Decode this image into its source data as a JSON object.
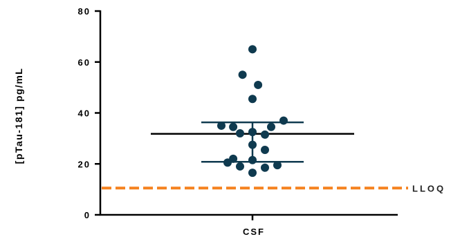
{
  "chart_data": {
    "type": "scatter",
    "title": "",
    "xlabel": "",
    "ylabel": "[pTau-181] pg/mL",
    "ylim": [
      0,
      80
    ],
    "yticks": [
      0,
      20,
      40,
      60,
      80
    ],
    "grid": false,
    "categories": [
      "CSF"
    ],
    "series": [
      {
        "category": "CSF",
        "points": [
          {
            "x_offset": 0.0,
            "y": 65
          },
          {
            "x_offset": -0.32,
            "y": 55
          },
          {
            "x_offset": 0.18,
            "y": 51
          },
          {
            "x_offset": 0.0,
            "y": 45.5
          },
          {
            "x_offset": 1.0,
            "y": 37
          },
          {
            "x_offset": -1.0,
            "y": 35
          },
          {
            "x_offset": -0.62,
            "y": 34.5
          },
          {
            "x_offset": 0.6,
            "y": 34.5
          },
          {
            "x_offset": -0.4,
            "y": 32
          },
          {
            "x_offset": 0.0,
            "y": 32.5
          },
          {
            "x_offset": 0.4,
            "y": 31.5
          },
          {
            "x_offset": 0.0,
            "y": 27.5
          },
          {
            "x_offset": 0.4,
            "y": 25.5
          },
          {
            "x_offset": -0.62,
            "y": 22
          },
          {
            "x_offset": 0.0,
            "y": 21.5
          },
          {
            "x_offset": -0.8,
            "y": 20.5
          },
          {
            "x_offset": 0.8,
            "y": 19.5
          },
          {
            "x_offset": -0.4,
            "y": 19
          },
          {
            "x_offset": 0.4,
            "y": 18.5
          },
          {
            "x_offset": 0.0,
            "y": 16.5
          }
        ],
        "point_color": "#0f3a4f"
      }
    ],
    "summary": {
      "mean": 31.8,
      "error_upper": 36.3,
      "error_lower": 20.8,
      "color": "#000000",
      "error_color": "#0f3a4f"
    },
    "reference_line": {
      "label": "LLOQ",
      "y": 10.5,
      "color": "#f5821f",
      "style": "dashed"
    }
  }
}
